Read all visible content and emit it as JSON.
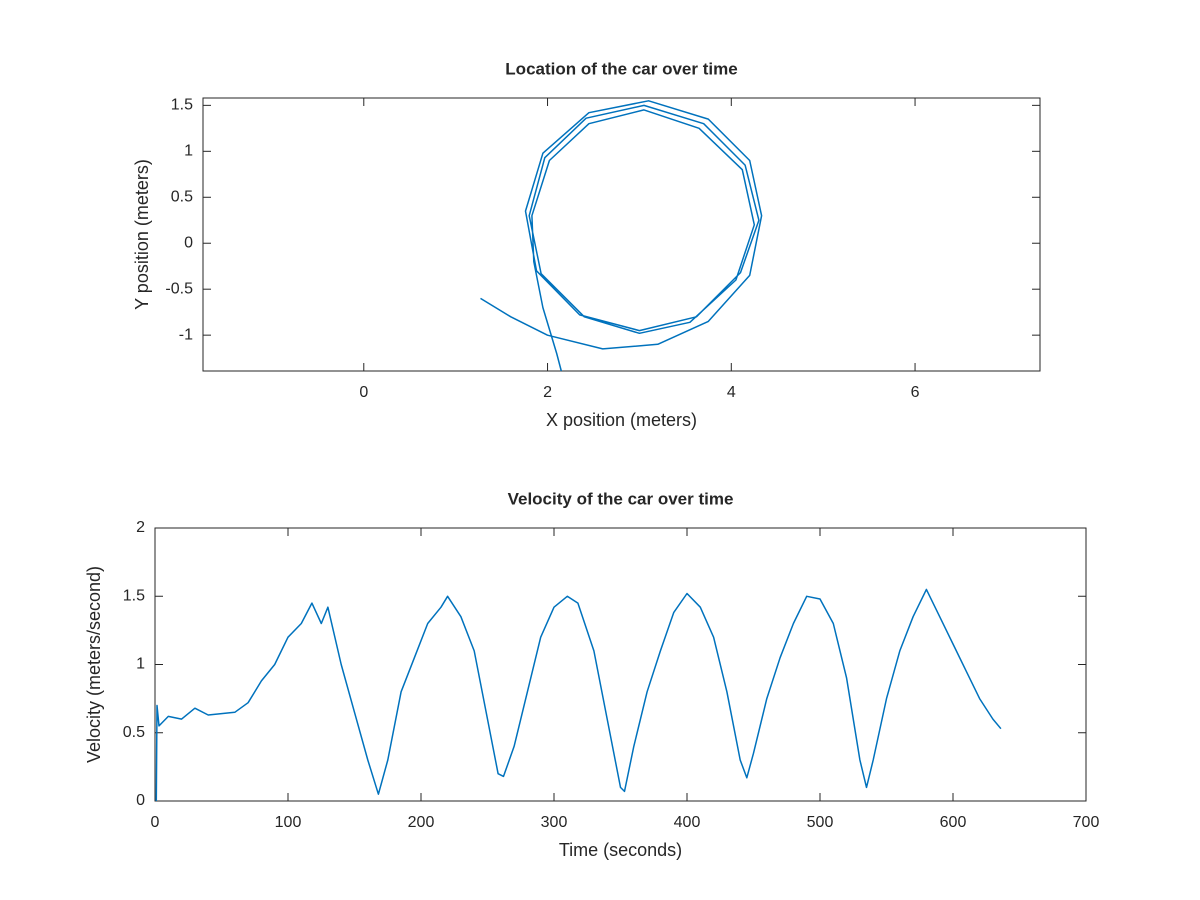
{
  "chart_data": [
    {
      "type": "line",
      "title": "Location of the car over time",
      "xlabel": "X position (meters)",
      "ylabel": "Y position (meters)",
      "color": "#0072bd",
      "x": [
        1.27,
        1.6,
        2.0,
        2.6,
        3.2,
        3.75,
        4.2,
        4.33,
        4.2,
        3.75,
        3.1,
        2.45,
        1.95,
        1.76,
        1.88,
        2.35,
        3.0,
        3.62,
        4.1,
        4.3,
        4.15,
        3.7,
        3.05,
        2.42,
        1.97,
        1.8,
        1.93,
        2.4,
        3.0,
        3.55,
        4.05,
        4.25,
        4.12,
        3.65,
        3.05,
        2.45,
        2.02,
        1.83,
        1.85,
        1.95,
        2.1,
        2.15
      ],
      "values": [
        -0.6,
        -0.8,
        -1.0,
        -1.15,
        -1.1,
        -0.85,
        -0.35,
        0.3,
        0.9,
        1.35,
        1.55,
        1.42,
        0.98,
        0.35,
        -0.3,
        -0.78,
        -0.95,
        -0.8,
        -0.32,
        0.25,
        0.85,
        1.3,
        1.5,
        1.36,
        0.93,
        0.3,
        -0.33,
        -0.8,
        -0.98,
        -0.86,
        -0.4,
        0.2,
        0.8,
        1.25,
        1.45,
        1.3,
        0.9,
        0.3,
        -0.2,
        -0.7,
        -1.2,
        -1.39
      ],
      "xlim": [
        -1.75,
        7.36
      ],
      "ylim": [
        -1.39,
        1.58
      ],
      "xticks": [
        0,
        2,
        4,
        6
      ],
      "yticks": [
        -1,
        -0.5,
        0,
        0.5,
        1,
        1.5
      ]
    },
    {
      "type": "line",
      "title": "Velocity of the car over time",
      "xlabel": "Time (seconds)",
      "ylabel": "Velocity (meters/second)",
      "color": "#0072bd",
      "x": [
        1,
        1.5,
        3,
        10,
        20,
        30,
        40,
        60,
        70,
        80,
        90,
        100,
        110,
        118,
        125,
        130,
        140,
        150,
        160,
        168,
        175,
        185,
        195,
        205,
        215,
        220,
        230,
        240,
        250,
        258,
        262,
        270,
        280,
        290,
        300,
        310,
        318,
        330,
        340,
        350,
        353,
        360,
        370,
        380,
        390,
        400,
        410,
        420,
        430,
        440,
        445,
        450,
        460,
        470,
        480,
        490,
        500,
        510,
        520,
        530,
        535,
        540,
        550,
        560,
        570,
        580,
        590,
        600,
        610,
        620,
        630,
        636
      ],
      "values": [
        0,
        0.7,
        0.55,
        0.62,
        0.6,
        0.68,
        0.63,
        0.65,
        0.72,
        0.88,
        1.0,
        1.2,
        1.3,
        1.45,
        1.3,
        1.42,
        1.0,
        0.65,
        0.3,
        0.05,
        0.3,
        0.8,
        1.05,
        1.3,
        1.42,
        1.5,
        1.35,
        1.1,
        0.6,
        0.2,
        0.18,
        0.4,
        0.8,
        1.2,
        1.42,
        1.5,
        1.45,
        1.1,
        0.6,
        0.1,
        0.07,
        0.4,
        0.8,
        1.1,
        1.38,
        1.52,
        1.42,
        1.2,
        0.8,
        0.3,
        0.17,
        0.35,
        0.75,
        1.05,
        1.3,
        1.5,
        1.48,
        1.3,
        0.9,
        0.3,
        0.1,
        0.3,
        0.75,
        1.1,
        1.35,
        1.55,
        1.35,
        1.15,
        0.95,
        0.75,
        0.6,
        0.53
      ],
      "xlim": [
        0,
        700
      ],
      "ylim": [
        0,
        2
      ],
      "xticks": [
        0,
        100,
        200,
        300,
        400,
        500,
        600,
        700
      ],
      "yticks": [
        0,
        0.5,
        1,
        1.5,
        2
      ]
    }
  ]
}
